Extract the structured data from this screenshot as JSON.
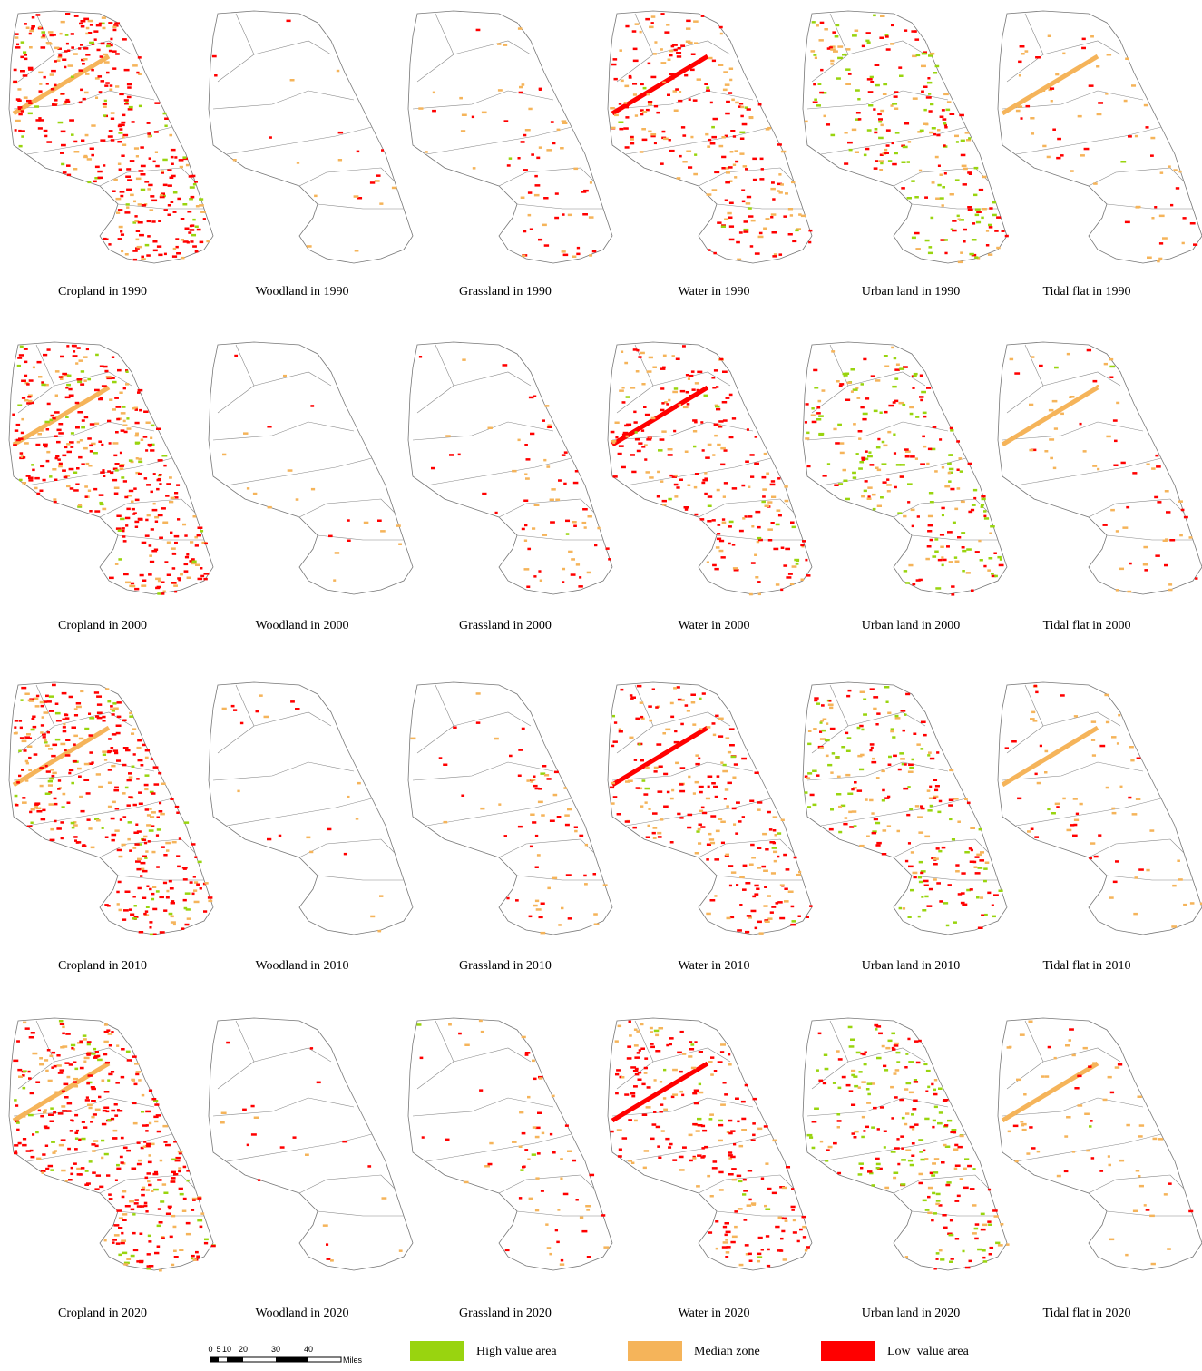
{
  "panels": [
    {
      "caption": "Cropland in 1990"
    },
    {
      "caption": "Woodland in 1990"
    },
    {
      "caption": "Grassland in 1990"
    },
    {
      "caption": "Water in 1990"
    },
    {
      "caption": "Urban land in 1990"
    },
    {
      "caption": "Tidal flat in 1990"
    },
    {
      "caption": "Cropland in 2000"
    },
    {
      "caption": "Woodland in 2000"
    },
    {
      "caption": "Grassland in 2000"
    },
    {
      "caption": "Water in 2000"
    },
    {
      "caption": "Urban land in 2000"
    },
    {
      "caption": "Tidal flat in 2000"
    },
    {
      "caption": "Cropland in 2010"
    },
    {
      "caption": "Woodland in 2010"
    },
    {
      "caption": "Grassland in 2010"
    },
    {
      "caption": "Water in 2010"
    },
    {
      "caption": "Urban land in 2010"
    },
    {
      "caption": "Tidal flat in 2010"
    },
    {
      "caption": "Cropland in 2020"
    },
    {
      "caption": "Woodland in 2020"
    },
    {
      "caption": "Grassland in 2020"
    },
    {
      "caption": "Water in 2020"
    },
    {
      "caption": "Urban land in 2020"
    },
    {
      "caption": "Tidal flat in 2020"
    }
  ],
  "legend": [
    {
      "label": "High value area",
      "color": "#99d40f"
    },
    {
      "label": "Median zone",
      "color": "#f5b45a"
    },
    {
      "label": "Low  value area",
      "color": "#ff0000"
    }
  ],
  "scale_bar": {
    "labels": [
      "0",
      "5",
      "10",
      "20",
      "30",
      "40"
    ],
    "unit": "Miles"
  }
}
